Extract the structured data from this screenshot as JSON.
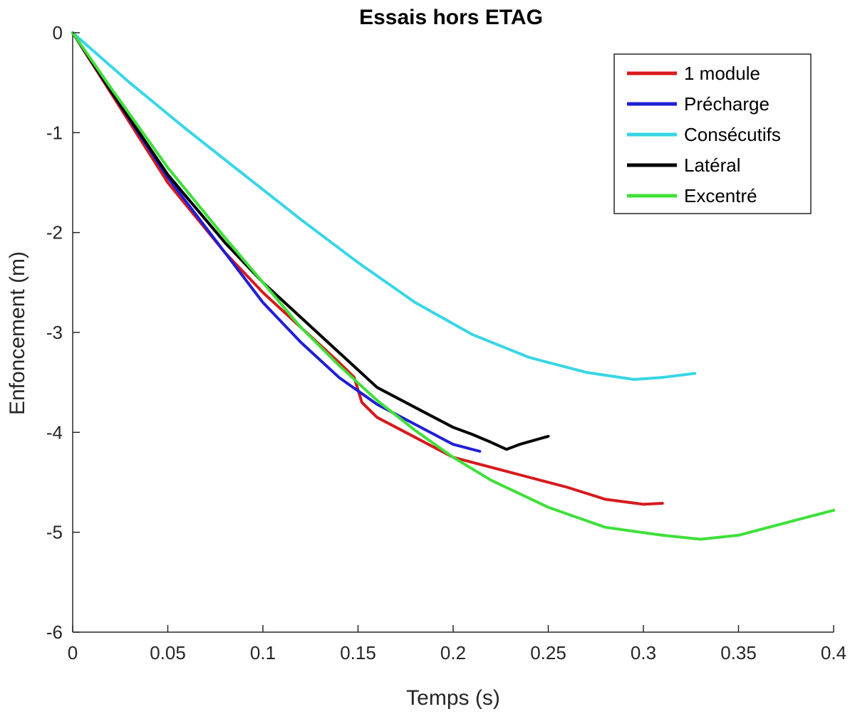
{
  "chart_data": {
    "type": "line",
    "title": "Essais hors ETAG",
    "xlabel": "Temps (s)",
    "ylabel": "Enfoncement (m)",
    "xlim": [
      0,
      0.4
    ],
    "ylim": [
      -6,
      0
    ],
    "xticks": [
      0,
      0.05,
      0.1,
      0.15,
      0.2,
      0.25,
      0.3,
      0.35,
      0.4
    ],
    "xtick_labels": [
      "0",
      "0.05",
      "0.1",
      "0.15",
      "0.2",
      "0.25",
      "0.3",
      "0.35",
      "0.4"
    ],
    "yticks": [
      0,
      -1,
      -2,
      -3,
      -4,
      -5,
      -6
    ],
    "ytick_labels": [
      "0",
      "-1",
      "-2",
      "-3",
      "-4",
      "-5",
      "-6"
    ],
    "grid": false,
    "legend_position": "top-right",
    "series": [
      {
        "name": "1 module",
        "color": "#d7191c",
        "points": [
          [
            0,
            0
          ],
          [
            0.02,
            -0.6
          ],
          [
            0.05,
            -1.5
          ],
          [
            0.08,
            -2.2
          ],
          [
            0.1,
            -2.6
          ],
          [
            0.12,
            -2.95
          ],
          [
            0.14,
            -3.3
          ],
          [
            0.148,
            -3.45
          ],
          [
            0.152,
            -3.7
          ],
          [
            0.16,
            -3.85
          ],
          [
            0.18,
            -4.05
          ],
          [
            0.2,
            -4.25
          ],
          [
            0.22,
            -4.35
          ],
          [
            0.24,
            -4.45
          ],
          [
            0.26,
            -4.55
          ],
          [
            0.28,
            -4.67
          ],
          [
            0.3,
            -4.72
          ],
          [
            0.31,
            -4.71
          ]
        ]
      },
      {
        "name": "Précharge",
        "color": "#1f1fd6",
        "points": [
          [
            0,
            0
          ],
          [
            0.02,
            -0.58
          ],
          [
            0.05,
            -1.45
          ],
          [
            0.08,
            -2.2
          ],
          [
            0.1,
            -2.7
          ],
          [
            0.12,
            -3.1
          ],
          [
            0.14,
            -3.45
          ],
          [
            0.16,
            -3.72
          ],
          [
            0.18,
            -3.92
          ],
          [
            0.2,
            -4.12
          ],
          [
            0.214,
            -4.19
          ]
        ]
      },
      {
        "name": "Consécutifs",
        "color": "#38d6e6",
        "points": [
          [
            0,
            0
          ],
          [
            0.03,
            -0.5
          ],
          [
            0.06,
            -0.97
          ],
          [
            0.09,
            -1.42
          ],
          [
            0.12,
            -1.87
          ],
          [
            0.15,
            -2.3
          ],
          [
            0.18,
            -2.7
          ],
          [
            0.21,
            -3.02
          ],
          [
            0.24,
            -3.25
          ],
          [
            0.27,
            -3.4
          ],
          [
            0.295,
            -3.47
          ],
          [
            0.31,
            -3.45
          ],
          [
            0.327,
            -3.41
          ]
        ]
      },
      {
        "name": "Latéral",
        "color": "#000000",
        "points": [
          [
            0,
            0
          ],
          [
            0.02,
            -0.58
          ],
          [
            0.05,
            -1.42
          ],
          [
            0.08,
            -2.1
          ],
          [
            0.1,
            -2.5
          ],
          [
            0.12,
            -2.85
          ],
          [
            0.14,
            -3.2
          ],
          [
            0.16,
            -3.55
          ],
          [
            0.18,
            -3.75
          ],
          [
            0.2,
            -3.95
          ],
          [
            0.21,
            -4.02
          ],
          [
            0.22,
            -4.1
          ],
          [
            0.228,
            -4.17
          ],
          [
            0.235,
            -4.12
          ],
          [
            0.25,
            -4.04
          ]
        ]
      },
      {
        "name": "Excentré",
        "color": "#3ee03a",
        "points": [
          [
            0,
            0
          ],
          [
            0.02,
            -0.55
          ],
          [
            0.05,
            -1.35
          ],
          [
            0.08,
            -2.05
          ],
          [
            0.1,
            -2.5
          ],
          [
            0.12,
            -2.95
          ],
          [
            0.14,
            -3.33
          ],
          [
            0.16,
            -3.68
          ],
          [
            0.18,
            -3.98
          ],
          [
            0.2,
            -4.25
          ],
          [
            0.22,
            -4.48
          ],
          [
            0.25,
            -4.75
          ],
          [
            0.28,
            -4.95
          ],
          [
            0.31,
            -5.03
          ],
          [
            0.33,
            -5.07
          ],
          [
            0.35,
            -5.03
          ],
          [
            0.37,
            -4.93
          ],
          [
            0.4,
            -4.78
          ]
        ]
      }
    ]
  }
}
